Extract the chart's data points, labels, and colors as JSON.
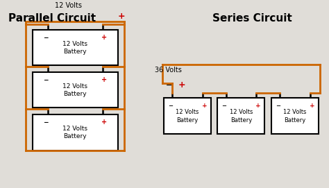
{
  "bg_color": "#e0ddd8",
  "wire_color": "#cc6600",
  "box_color": "#ffffff",
  "box_edge_color": "#000000",
  "plus_color": "#cc0000",
  "text_color": "#000000",
  "title_left": "Parallel Circuit",
  "title_right": "Series Circuit",
  "label_parallel": "12 Volts",
  "label_series": "36 Volts",
  "battery_label_line1": "12 Volts",
  "battery_label_line2": "Battery"
}
